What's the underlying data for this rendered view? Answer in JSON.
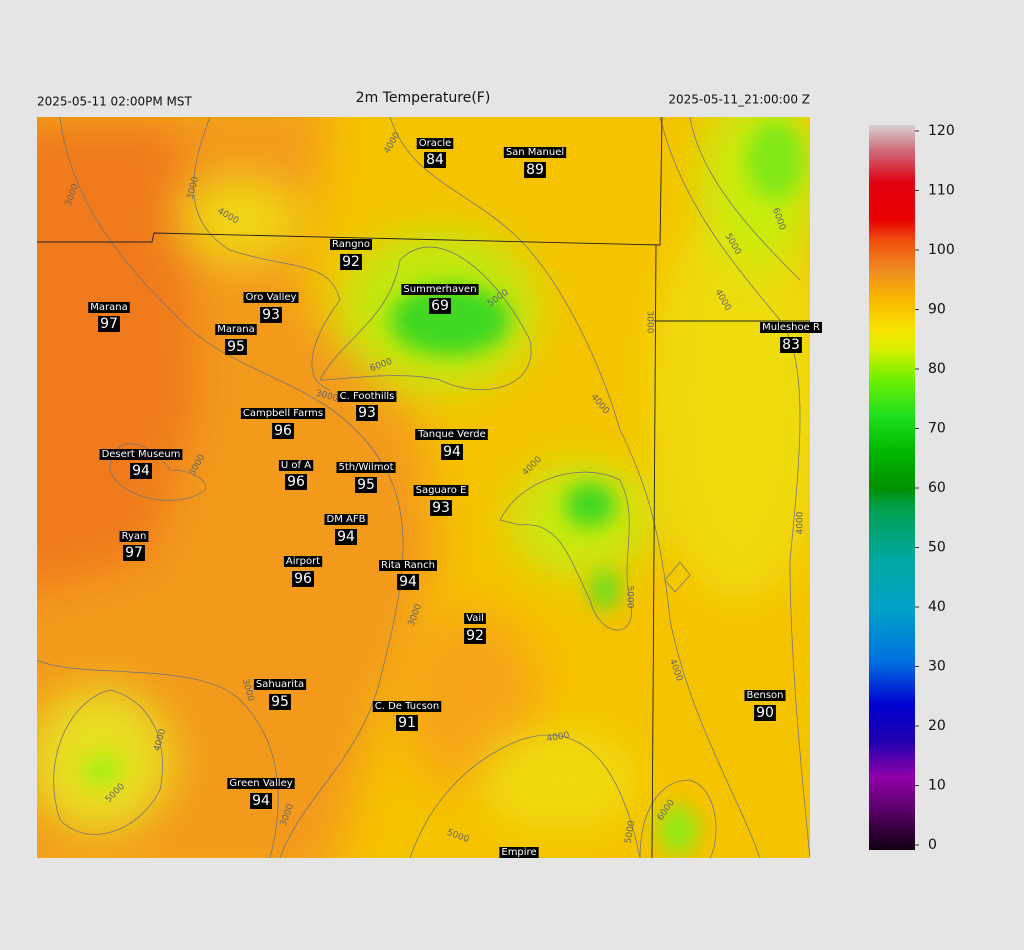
{
  "header": {
    "left": "2025-05-11 02:00PM MST",
    "title": "2m Temperature(F)",
    "right": "2025-05-11_21:00:00 Z"
  },
  "stations": [
    {
      "name": "Oracle",
      "value": 84
    },
    {
      "name": "San Manuel",
      "value": 89
    },
    {
      "name": "Rangno",
      "value": 92
    },
    {
      "name": "Marana",
      "value": 97
    },
    {
      "name": "Oro Valley",
      "value": 93
    },
    {
      "name": "Summerhaven",
      "value": 69
    },
    {
      "name": "Marana",
      "value": 95
    },
    {
      "name": "Muleshoe R",
      "value": 83
    },
    {
      "name": "C. Foothills",
      "value": 93
    },
    {
      "name": "Campbell Farms",
      "value": 96
    },
    {
      "name": "Tanque Verde",
      "value": 94
    },
    {
      "name": "Desert Museum",
      "value": 94
    },
    {
      "name": "U of A",
      "value": 96
    },
    {
      "name": "5th/Wilmot",
      "value": 95
    },
    {
      "name": "Saguaro E",
      "value": 93
    },
    {
      "name": "DM AFB",
      "value": 94
    },
    {
      "name": "Ryan",
      "value": 97
    },
    {
      "name": "Airport",
      "value": 96
    },
    {
      "name": "Rita Ranch",
      "value": 94
    },
    {
      "name": "Vail",
      "value": 92
    },
    {
      "name": "Sahuarita",
      "value": 95
    },
    {
      "name": "C. De Tucson",
      "value": 91
    },
    {
      "name": "Benson",
      "value": 90
    },
    {
      "name": "Green Valley",
      "value": 94
    },
    {
      "name": "Empire"
    }
  ],
  "contour_labels": [
    "3000",
    "3000",
    "3000",
    "3000",
    "3000",
    "3000",
    "3000",
    "3000",
    "4000",
    "4000",
    "4000",
    "4000",
    "4000",
    "4000",
    "4000",
    "4000",
    "4000",
    "5000",
    "5000",
    "5000",
    "5000",
    "5000",
    "5000",
    "6000",
    "6000",
    "6000"
  ],
  "colorbar": {
    "ticks": [
      0,
      10,
      20,
      30,
      40,
      50,
      60,
      70,
      80,
      90,
      100,
      110,
      120
    ]
  }
}
